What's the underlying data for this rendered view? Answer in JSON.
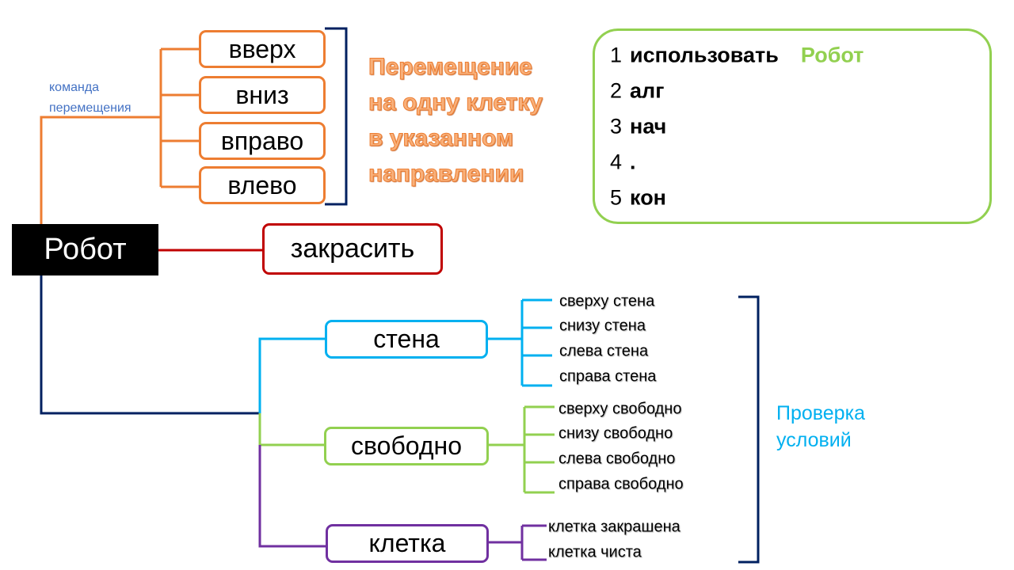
{
  "root": {
    "label": "Робот"
  },
  "move": {
    "caption": [
      "команда",
      "перемещения"
    ],
    "commands": [
      "вверх",
      "вниз",
      "вправо",
      "влево"
    ],
    "description": [
      "Перемещение",
      "на одну клетку",
      "в указанном",
      "направлении"
    ]
  },
  "paint": {
    "label": "закрасить"
  },
  "conditions": {
    "wall": {
      "label": "стена",
      "items": [
        "сверху стена",
        "снизу стена",
        "слева стена",
        "справа стена"
      ]
    },
    "free": {
      "label": "свободно",
      "items": [
        "сверху свободно",
        "снизу свободно",
        "слева свободно",
        "справа свободно"
      ]
    },
    "cell": {
      "label": "клетка",
      "items": [
        "клетка закрашена",
        "клетка чиста"
      ]
    },
    "caption": [
      "Проверка",
      "условий"
    ]
  },
  "program": {
    "lines": [
      {
        "num": "1",
        "code": "использовать",
        "extra": "Робот"
      },
      {
        "num": "2",
        "code": "алг"
      },
      {
        "num": "3",
        "code": "нач"
      },
      {
        "num": "4",
        "code": "."
      },
      {
        "num": "5",
        "code": "кон"
      }
    ]
  },
  "colors": {
    "move": "#ED7D31",
    "paint": "#C00000",
    "wall": "#00B0F0",
    "free": "#92D050",
    "cell": "#7030A0",
    "bracket": "#002060",
    "caption": "#4472C4"
  }
}
